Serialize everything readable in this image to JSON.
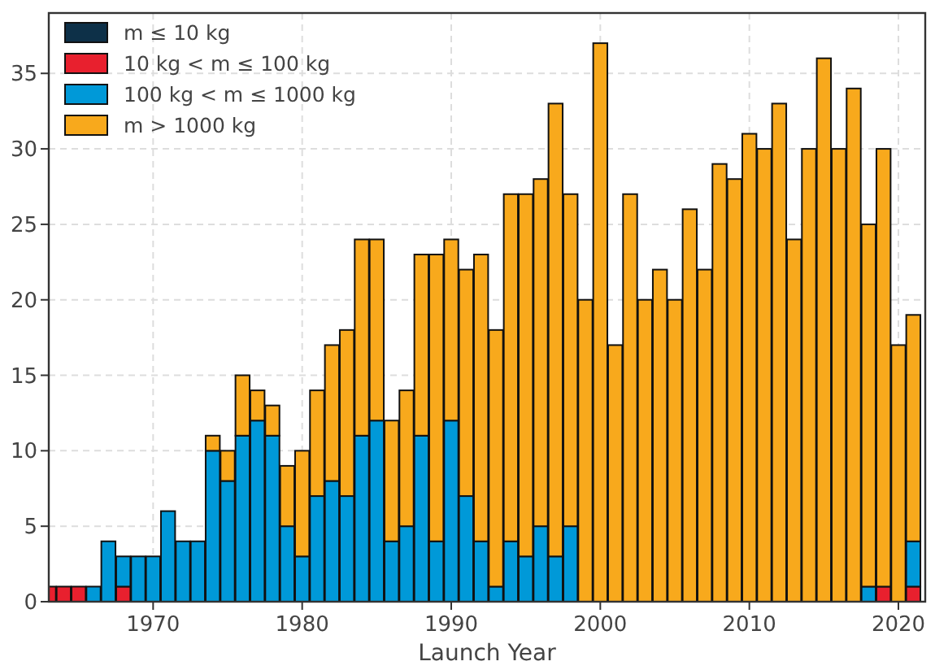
{
  "chart_data": {
    "type": "bar",
    "stacked": true,
    "xlabel": "Launch Year",
    "x": [
      1963,
      1964,
      1965,
      1966,
      1967,
      1968,
      1969,
      1970,
      1971,
      1972,
      1973,
      1974,
      1975,
      1976,
      1977,
      1978,
      1979,
      1980,
      1981,
      1982,
      1983,
      1984,
      1985,
      1986,
      1987,
      1988,
      1989,
      1990,
      1991,
      1992,
      1993,
      1994,
      1995,
      1996,
      1997,
      1998,
      1999,
      2000,
      2001,
      2002,
      2003,
      2004,
      2005,
      2006,
      2007,
      2008,
      2009,
      2010,
      2011,
      2012,
      2013,
      2014,
      2015,
      2016,
      2017,
      2018,
      2019,
      2020,
      2021
    ],
    "series": [
      {
        "name": "m  ≤  10 kg",
        "color": "#0d3048",
        "values": [
          0,
          0,
          0,
          0,
          0,
          0,
          0,
          0,
          0,
          0,
          0,
          0,
          0,
          0,
          0,
          0,
          0,
          0,
          0,
          0,
          0,
          0,
          0,
          0,
          0,
          0,
          0,
          0,
          0,
          0,
          0,
          0,
          0,
          0,
          0,
          0,
          0,
          0,
          0,
          0,
          0,
          0,
          0,
          0,
          0,
          0,
          0,
          0,
          0,
          0,
          0,
          0,
          0,
          0,
          0,
          0,
          0,
          0,
          0
        ]
      },
      {
        "name": "10 kg < m ≤ 100 kg",
        "color": "#e8202e",
        "values": [
          1,
          1,
          1,
          0,
          0,
          1,
          0,
          0,
          0,
          0,
          0,
          0,
          0,
          0,
          0,
          0,
          0,
          0,
          0,
          0,
          0,
          0,
          0,
          0,
          0,
          0,
          0,
          0,
          0,
          0,
          0,
          0,
          0,
          0,
          0,
          0,
          0,
          0,
          0,
          0,
          0,
          0,
          0,
          0,
          0,
          0,
          0,
          0,
          0,
          0,
          0,
          0,
          0,
          0,
          0,
          0,
          1,
          0,
          1
        ]
      },
      {
        "name": "100 kg < m ≤ 1000 kg",
        "color": "#0099d8",
        "values": [
          0,
          0,
          0,
          1,
          4,
          2,
          3,
          3,
          6,
          4,
          4,
          10,
          8,
          11,
          12,
          11,
          5,
          3,
          7,
          8,
          7,
          11,
          12,
          4,
          5,
          11,
          4,
          12,
          7,
          4,
          1,
          4,
          3,
          5,
          3,
          5,
          0,
          0,
          0,
          0,
          0,
          0,
          0,
          0,
          0,
          0,
          0,
          0,
          0,
          0,
          0,
          0,
          0,
          0,
          0,
          1,
          0,
          0,
          3
        ]
      },
      {
        "name": "m > 1000 kg",
        "color": "#f8a91c",
        "values": [
          0,
          0,
          0,
          0,
          0,
          0,
          0,
          0,
          0,
          0,
          0,
          1,
          2,
          4,
          2,
          2,
          4,
          7,
          7,
          9,
          11,
          13,
          12,
          8,
          9,
          12,
          19,
          12,
          15,
          19,
          17,
          23,
          24,
          23,
          30,
          22,
          20,
          37,
          17,
          27,
          20,
          22,
          20,
          26,
          22,
          29,
          28,
          31,
          30,
          33,
          24,
          30,
          36,
          30,
          34,
          24,
          29,
          17,
          15
        ]
      }
    ],
    "xlim": [
      1963,
      2021.8
    ],
    "xticks": [
      1970,
      1980,
      1990,
      2000,
      2010,
      2020
    ],
    "ylim": [
      0,
      39
    ],
    "yticks": [
      0,
      5,
      10,
      15,
      20,
      25,
      30,
      35
    ],
    "grid": true,
    "legend": "top left"
  }
}
